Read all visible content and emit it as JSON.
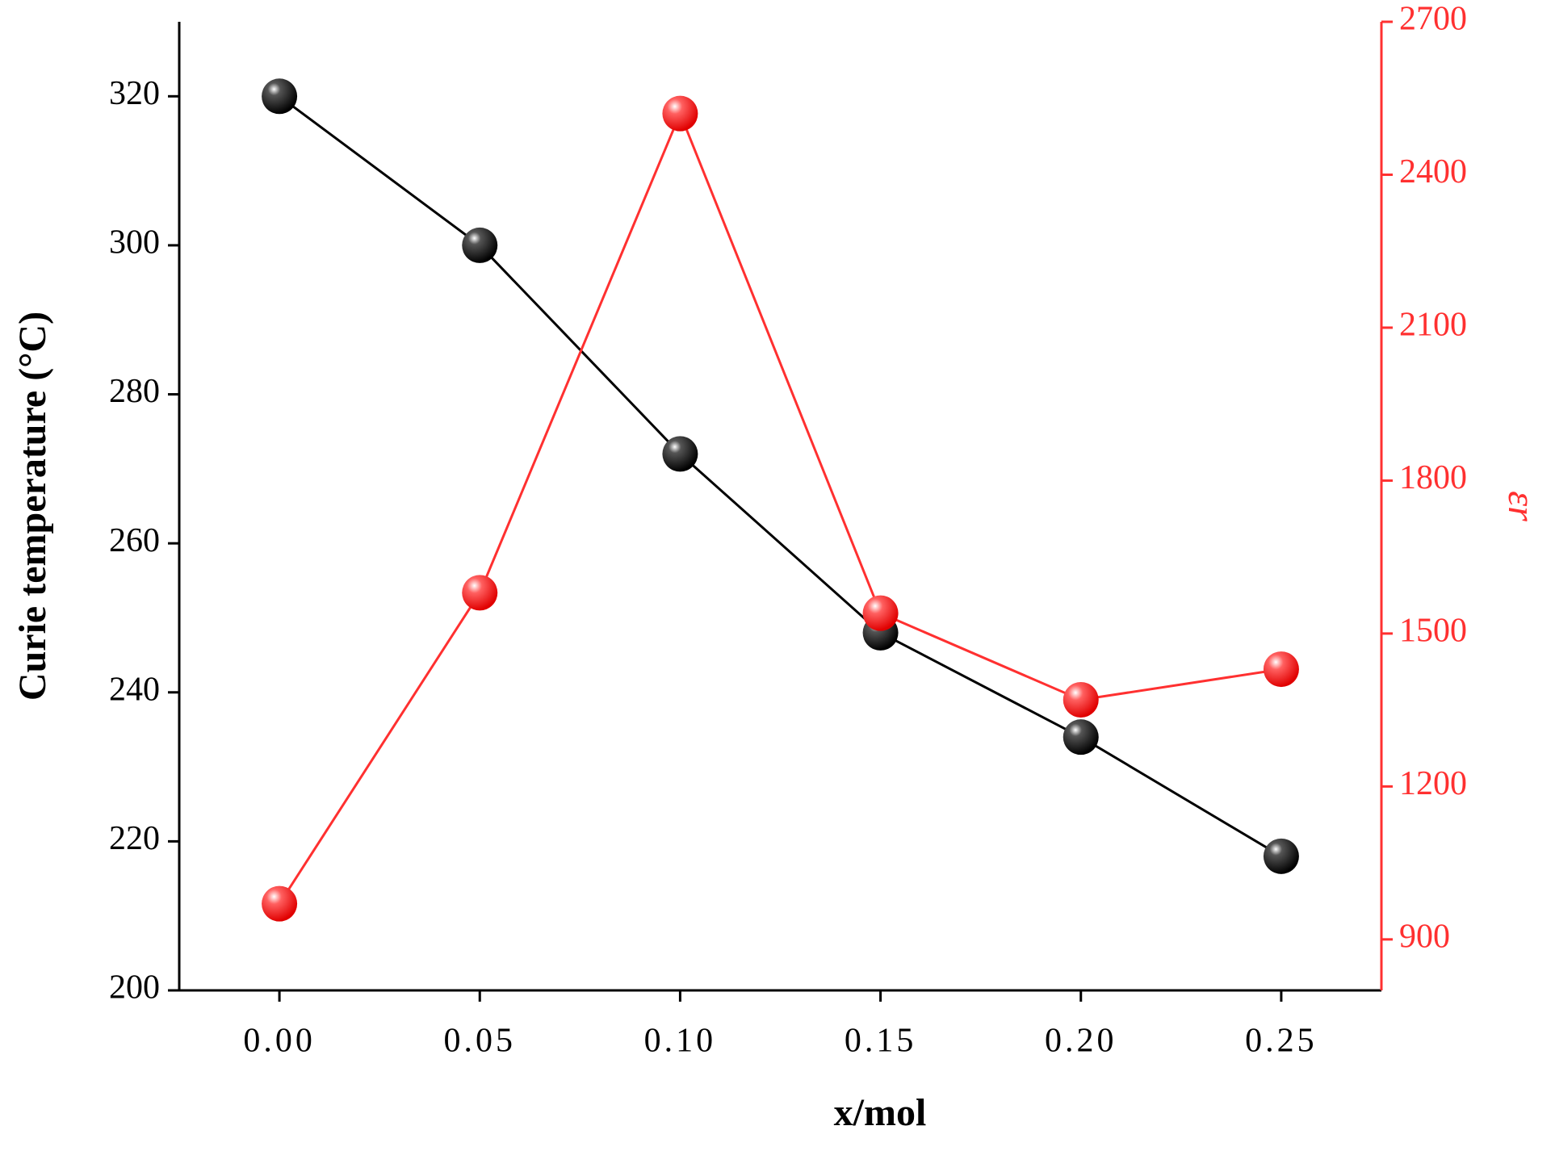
{
  "chart_data": {
    "type": "line",
    "xlabel": "x/mol",
    "ylabel": "Curie temperature (°C)",
    "y2label": "εr",
    "x": [
      0,
      0.05,
      0.1,
      0.15,
      0.2,
      0.25
    ],
    "series": [
      {
        "color": "#000000",
        "axis": "y",
        "values": [
          320,
          300,
          272,
          248,
          234,
          218
        ]
      },
      {
        "color": "#ff3030",
        "axis": "y2",
        "values": [
          970,
          1580,
          2520,
          1540,
          1370,
          1430
        ]
      }
    ],
    "xlim": [
      -0.025,
      0.275
    ],
    "xticks": [
      {
        "value": 0,
        "label": "0.00"
      },
      {
        "value": 0.05,
        "label": "0.05"
      },
      {
        "value": 0.1,
        "label": "0.10"
      },
      {
        "value": 0.15,
        "label": "0.15"
      },
      {
        "value": 0.2,
        "label": "0.20"
      },
      {
        "value": 0.25,
        "label": "0.25"
      }
    ],
    "ylim": [
      200,
      330
    ],
    "yticks": [
      200,
      220,
      240,
      260,
      280,
      300,
      320
    ],
    "y2lim": [
      800,
      2700
    ],
    "y2ticks": [
      900,
      1200,
      1500,
      1800,
      2100,
      2400,
      2700
    ],
    "y2color": "#ff3030"
  }
}
